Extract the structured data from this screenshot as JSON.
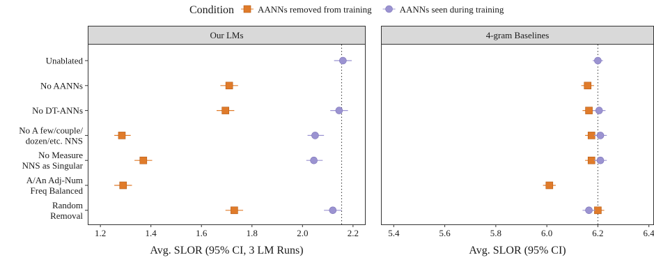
{
  "legend": {
    "title": "Condition",
    "items": [
      {
        "label": "AANNs removed from training",
        "color": "#e07b2a",
        "shape": "square"
      },
      {
        "label": "AANNs seen during training",
        "color": "#9b93d1",
        "shape": "circle"
      }
    ]
  },
  "chart_data": [
    {
      "type": "scatter",
      "panel_title": "Our LMs",
      "xlabel": "Avg. SLOR (95% CI, 3 LM Runs)",
      "xlim": [
        1.15,
        2.25
      ],
      "xticks": [
        "1.2",
        "1.4",
        "1.6",
        "1.8",
        "2.0",
        "2.2"
      ],
      "reference_line": 2.155,
      "categories": [
        [
          "Unablated"
        ],
        [
          "No AANNs"
        ],
        [
          "No DT-ANNs"
        ],
        [
          "No A few/couple/",
          "dozen/etc. NNS"
        ],
        [
          "No Measure",
          "NNS as Singular"
        ],
        [
          "A/An Adj-Num",
          "Freq Balanced"
        ],
        [
          "Random",
          "Removal"
        ]
      ],
      "series": [
        {
          "name": "AANNs removed from training",
          "color": "#e07b2a",
          "marker": "square",
          "points": [
            null,
            {
              "x": 1.71,
              "lo": 1.675,
              "hi": 1.745
            },
            {
              "x": 1.695,
              "lo": 1.66,
              "hi": 1.73
            },
            {
              "x": 1.285,
              "lo": 1.255,
              "hi": 1.32
            },
            {
              "x": 1.37,
              "lo": 1.335,
              "hi": 1.405
            },
            {
              "x": 1.29,
              "lo": 1.255,
              "hi": 1.325
            },
            {
              "x": 1.73,
              "lo": 1.695,
              "hi": 1.765
            }
          ]
        },
        {
          "name": "AANNs seen during training",
          "color": "#9b93d1",
          "marker": "circle",
          "points": [
            {
              "x": 2.16,
              "lo": 2.125,
              "hi": 2.195
            },
            null,
            {
              "x": 2.145,
              "lo": 2.11,
              "hi": 2.18
            },
            {
              "x": 2.05,
              "lo": 2.02,
              "hi": 2.085
            },
            {
              "x": 2.045,
              "lo": 2.015,
              "hi": 2.08
            },
            null,
            {
              "x": 2.12,
              "lo": 2.085,
              "hi": 2.155
            }
          ]
        }
      ]
    },
    {
      "type": "scatter",
      "panel_title": "4-gram Baselines",
      "xlabel": "Avg. SLOR (95% CI)",
      "xlim": [
        5.35,
        6.42
      ],
      "xticks": [
        "5.4",
        "5.6",
        "5.8",
        "6.0",
        "6.2",
        "6.4"
      ],
      "reference_line": 6.2,
      "categories": [
        [
          "Unablated"
        ],
        [
          "No AANNs"
        ],
        [
          "No DT-ANNs"
        ],
        [
          "No A few/couple/",
          "dozen/etc. NNS"
        ],
        [
          "No Measure",
          "NNS as Singular"
        ],
        [
          "A/An Adj-Num",
          "Freq Balanced"
        ],
        [
          "Random",
          "Removal"
        ]
      ],
      "series": [
        {
          "name": "AANNs removed from training",
          "color": "#e07b2a",
          "marker": "square",
          "points": [
            null,
            {
              "x": 6.16,
              "lo": 6.135,
              "hi": 6.185
            },
            {
              "x": 6.165,
              "lo": 6.14,
              "hi": 6.19
            },
            {
              "x": 6.175,
              "lo": 6.15,
              "hi": 6.2
            },
            {
              "x": 6.175,
              "lo": 6.15,
              "hi": 6.2
            },
            {
              "x": 6.01,
              "lo": 5.985,
              "hi": 6.035
            },
            {
              "x": 6.2,
              "lo": 6.175,
              "hi": 6.225
            }
          ]
        },
        {
          "name": "AANNs seen during training",
          "color": "#9b93d1",
          "marker": "circle",
          "points": [
            {
              "x": 6.2,
              "lo": 6.18,
              "hi": 6.22
            },
            null,
            {
              "x": 6.205,
              "lo": 6.18,
              "hi": 6.23
            },
            {
              "x": 6.21,
              "lo": 6.185,
              "hi": 6.235
            },
            {
              "x": 6.21,
              "lo": 6.185,
              "hi": 6.235
            },
            null,
            {
              "x": 6.165,
              "lo": 6.14,
              "hi": 6.19
            }
          ]
        }
      ]
    }
  ]
}
